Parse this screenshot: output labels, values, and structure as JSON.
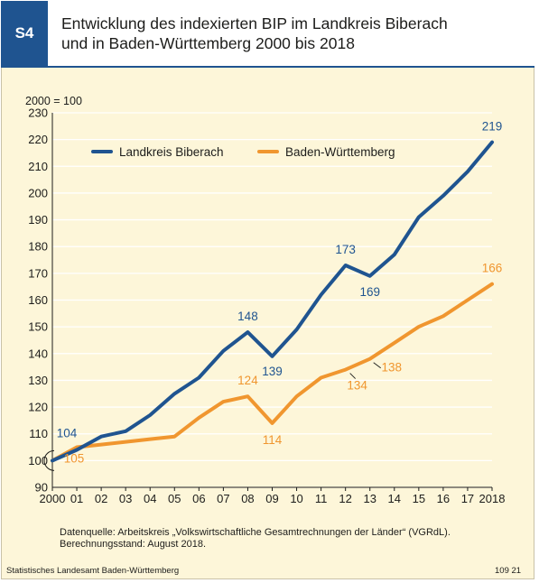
{
  "header": {
    "badge": "S4",
    "title_line1": "Entwicklung des indexierten BIP im Landkreis Biberach",
    "title_line2": "und in Baden-Württemberg 2000 bis 2018"
  },
  "chart_data": {
    "type": "line",
    "unit_label": "2000 = 100",
    "ylim": [
      90,
      230
    ],
    "yticks": [
      90,
      100,
      110,
      120,
      130,
      140,
      150,
      160,
      170,
      180,
      190,
      200,
      210,
      220,
      230
    ],
    "categories": [
      "2000",
      "01",
      "02",
      "03",
      "04",
      "05",
      "06",
      "07",
      "08",
      "09",
      "10",
      "11",
      "12",
      "13",
      "14",
      "15",
      "16",
      "17",
      "2018"
    ],
    "series": [
      {
        "name": "Landkreis Biberach",
        "color": "#1f5490",
        "values": [
          100,
          104,
          109,
          111,
          117,
          125,
          131,
          141,
          148,
          139,
          149,
          162,
          173,
          169,
          177,
          191,
          199,
          208,
          219
        ]
      },
      {
        "name": "Baden-Württemberg",
        "color": "#f0962f",
        "values": [
          100,
          105,
          106,
          107,
          108,
          109,
          116,
          122,
          124,
          114,
          124,
          131,
          134,
          138,
          144,
          150,
          154,
          160,
          166
        ]
      }
    ],
    "annotations": [
      {
        "series": 0,
        "index": 1,
        "text": "104"
      },
      {
        "series": 0,
        "index": 8,
        "text": "148"
      },
      {
        "series": 0,
        "index": 9,
        "text": "139"
      },
      {
        "series": 0,
        "index": 12,
        "text": "173"
      },
      {
        "series": 0,
        "index": 13,
        "text": "169"
      },
      {
        "series": 0,
        "index": 18,
        "text": "219"
      },
      {
        "series": 1,
        "index": 1,
        "text": "105"
      },
      {
        "series": 1,
        "index": 8,
        "text": "124"
      },
      {
        "series": 1,
        "index": 9,
        "text": "114"
      },
      {
        "series": 1,
        "index": 12,
        "text": "134"
      },
      {
        "series": 1,
        "index": 13,
        "text": "138"
      },
      {
        "series": 1,
        "index": 18,
        "text": "166"
      }
    ],
    "legend_position": "top-left",
    "grid": "horizontal"
  },
  "source": {
    "line1": "Datenquelle: Arbeitskreis „Volkswirtschaftliche Gesamtrechnungen der Länder“ (VGRdL).",
    "line2": "Berechnungsstand: August 2018."
  },
  "footer": {
    "left": "Statistisches Landesamt Baden-Württemberg",
    "right": "109 21"
  }
}
